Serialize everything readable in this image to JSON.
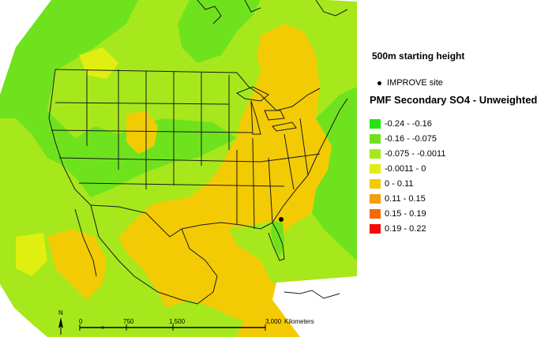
{
  "map": {
    "subtitle": "500m starting height",
    "site_marker_label": "IMPROVE site",
    "legend_title": "PMF Secondary SO4 - Unweighted",
    "legend_items": [
      {
        "label": "-0.24 - -0.16",
        "color": "#22e60f"
      },
      {
        "label": "-0.16 - -0.075",
        "color": "#6ee31d"
      },
      {
        "label": "-0.075 - -0.0011",
        "color": "#a6e81c"
      },
      {
        "label": "-0.0011 - 0",
        "color": "#e0ee10"
      },
      {
        "label": "0 - 0.11",
        "color": "#f3cb05"
      },
      {
        "label": "0.11 - 0.15",
        "color": "#f39e0b"
      },
      {
        "label": "0.15 - 0.19",
        "color": "#f46a05"
      },
      {
        "label": "0.19 - 0.22",
        "color": "#f50a05"
      }
    ],
    "scale_ticks": [
      "0",
      "750",
      "1,500",
      "3,000"
    ],
    "scale_unit": "Kilometers",
    "north_label": "N"
  }
}
